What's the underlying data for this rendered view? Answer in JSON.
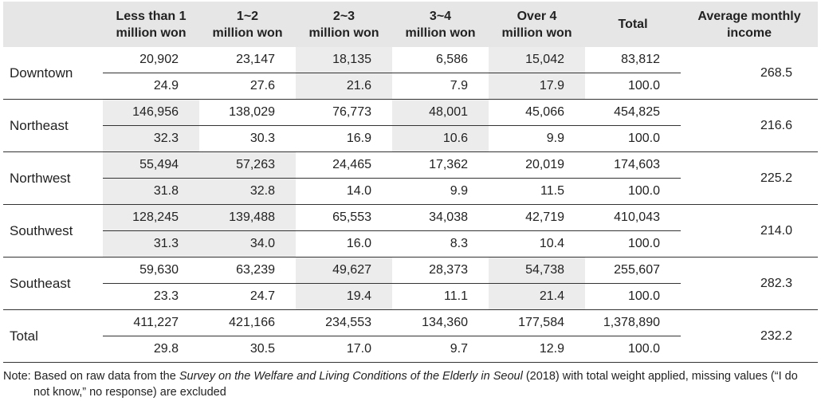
{
  "headers": {
    "region": "",
    "c1": [
      "Less than 1",
      "million won"
    ],
    "c2": [
      "1~2",
      "million won"
    ],
    "c3": [
      "2~3",
      "million won"
    ],
    "c4": [
      "3~4",
      "million won"
    ],
    "c5": [
      "Over 4",
      "million won"
    ],
    "total": "Total",
    "avg": [
      "Average monthly",
      "income"
    ]
  },
  "rows": [
    {
      "region": "Downtown",
      "counts": [
        "20,902",
        "23,147",
        "18,135",
        "6,586",
        "15,042",
        "83,812"
      ],
      "pcts": [
        "24.9",
        "27.6",
        "21.6",
        "7.9",
        "17.9",
        "100.0"
      ],
      "avg": "268.5"
    },
    {
      "region": "Northeast",
      "counts": [
        "146,956",
        "138,029",
        "76,773",
        "48,001",
        "45,066",
        "454,825"
      ],
      "pcts": [
        "32.3",
        "30.3",
        "16.9",
        "10.6",
        "9.9",
        "100.0"
      ],
      "avg": "216.6"
    },
    {
      "region": "Northwest",
      "counts": [
        "55,494",
        "57,263",
        "24,465",
        "17,362",
        "20,019",
        "174,603"
      ],
      "pcts": [
        "31.8",
        "32.8",
        "14.0",
        "9.9",
        "11.5",
        "100.0"
      ],
      "avg": "225.2"
    },
    {
      "region": "Southwest",
      "counts": [
        "128,245",
        "139,488",
        "65,553",
        "34,038",
        "42,719",
        "410,043"
      ],
      "pcts": [
        "31.3",
        "34.0",
        "16.0",
        "8.3",
        "10.4",
        "100.0"
      ],
      "avg": "214.0"
    },
    {
      "region": "Southeast",
      "counts": [
        "59,630",
        "63,239",
        "49,627",
        "28,373",
        "54,738",
        "255,607"
      ],
      "pcts": [
        "23.3",
        "24.7",
        "19.4",
        "11.1",
        "21.4",
        "100.0"
      ],
      "avg": "282.3"
    },
    {
      "region": "Total",
      "counts": [
        "411,227",
        "421,166",
        "234,553",
        "134,360",
        "177,584",
        "1,378,890"
      ],
      "pcts": [
        "29.8",
        "30.5",
        "17.0",
        "9.7",
        "12.9",
        "100.0"
      ],
      "avg": "232.2"
    }
  ],
  "highlight_color": "#ececec",
  "note": {
    "prefix": "Note: Based on raw data from the ",
    "survey_title": "Survey on the Welfare and Living Conditions of the Elderly in Seoul",
    "suffix": " (2018) with total weight applied, missing values (“I do",
    "line2": "not know,” no response) are excluded"
  }
}
